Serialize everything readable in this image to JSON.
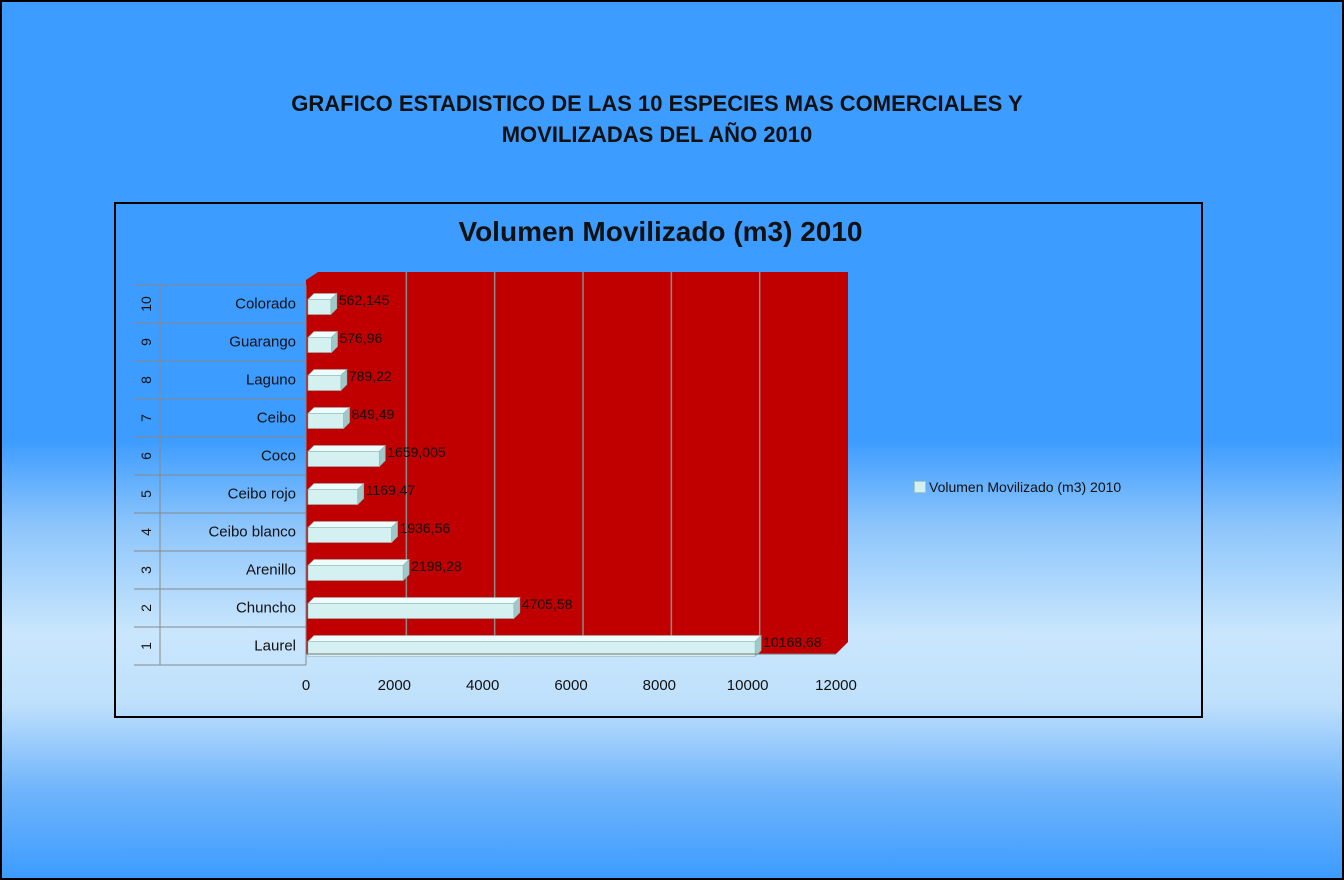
{
  "slide": {
    "title_line1": "GRAFICO ESTADISTICO DE LAS 10 ESPECIES MAS COMERCIALES Y",
    "title_line2": "MOVILIZADAS DEL AÑO 2010"
  },
  "colors": {
    "plot_background": "#c00000",
    "bar": "#d4f0f0",
    "bar_top": "#eefcfc",
    "bar_side": "#9fc8c8",
    "gridline": "#8a8a8a",
    "slide_background": "#3d9cff"
  },
  "chart_data": {
    "type": "bar",
    "orientation": "horizontal",
    "style": "3d",
    "title": "Volumen Movilizado (m3) 2010",
    "categories": [
      {
        "index": "1",
        "name": "Laurel"
      },
      {
        "index": "2",
        "name": "Chuncho"
      },
      {
        "index": "3",
        "name": "Arenillo"
      },
      {
        "index": "4",
        "name": "Ceibo blanco"
      },
      {
        "index": "5",
        "name": "Ceibo rojo"
      },
      {
        "index": "6",
        "name": "Coco"
      },
      {
        "index": "7",
        "name": "Ceibo"
      },
      {
        "index": "8",
        "name": "Laguno"
      },
      {
        "index": "9",
        "name": "Guarango"
      },
      {
        "index": "10",
        "name": "Colorado"
      }
    ],
    "series": [
      {
        "name": "Volumen Movilizado (m3) 2010",
        "values": [
          10168.68,
          4705.58,
          2198.28,
          1936.56,
          1169.47,
          1659.005,
          849.49,
          789.22,
          576.96,
          562.145
        ],
        "labels": [
          "10168,68",
          "4705,58",
          "2198,28",
          "1936,56",
          "1169,47",
          "1659,005",
          "849,49",
          "789,22",
          "576,96",
          "562,145"
        ]
      }
    ],
    "xlim": [
      0,
      12000
    ],
    "xticks": [
      0,
      2000,
      4000,
      6000,
      8000,
      10000,
      12000
    ],
    "grid": true,
    "legend_position": "right"
  }
}
